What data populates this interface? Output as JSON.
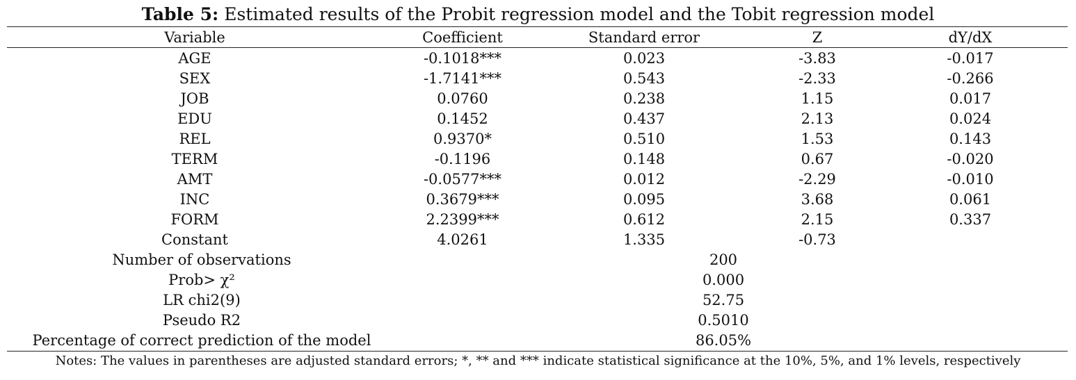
{
  "table": {
    "title_label": "Table 5:",
    "title_text": "Estimated results of the Probit regression model and the Tobit regression model",
    "headers": [
      "Variable",
      "Coefficient",
      "Standard error",
      "Z",
      "dY/dX"
    ],
    "rows": [
      {
        "variable": "AGE",
        "coefficient": "-0.1018***",
        "std_error": "0.023",
        "z": "-3.83",
        "dydx": "-0.017"
      },
      {
        "variable": "SEX",
        "coefficient": "-1.7141***",
        "std_error": "0.543",
        "z": "-2.33",
        "dydx": "-0.266"
      },
      {
        "variable": "JOB",
        "coefficient": "0.0760",
        "std_error": "0.238",
        "z": "1.15",
        "dydx": "0.017"
      },
      {
        "variable": "EDU",
        "coefficient": "0.1452",
        "std_error": "0.437",
        "z": "2.13",
        "dydx": "0.024"
      },
      {
        "variable": "REL",
        "coefficient": "0.9370*",
        "std_error": "0.510",
        "z": "1.53",
        "dydx": "0.143"
      },
      {
        "variable": "TERM",
        "coefficient": "-0.1196",
        "std_error": "0.148",
        "z": "0.67",
        "dydx": "-0.020"
      },
      {
        "variable": "AMT",
        "coefficient": "-0.0577***",
        "std_error": "0.012",
        "z": "-2.29",
        "dydx": "-0.010"
      },
      {
        "variable": "INC",
        "coefficient": "0.3679***",
        "std_error": "0.095",
        "z": "3.68",
        "dydx": "0.061"
      },
      {
        "variable": "FORM",
        "coefficient": "2.2399***",
        "std_error": "0.612",
        "z": "2.15",
        "dydx": "0.337"
      },
      {
        "variable": "Constant",
        "coefficient": "4.0261",
        "std_error": "1.335",
        "z": "-0.73",
        "dydx": ""
      }
    ],
    "stats": [
      {
        "label": "Number of observations",
        "value": "200"
      },
      {
        "label": "Prob> χ²",
        "value": "0.000"
      },
      {
        "label": "LR chi2(9)",
        "value": "52.75"
      },
      {
        "label": "Pseudo R2",
        "value": "0.5010"
      },
      {
        "label": "Percentage of correct prediction of the model",
        "value": "86.05%"
      }
    ],
    "notes": "Notes: The values in parentheses are adjusted standard errors; *, ** and *** indicate statistical significance at the 10%, 5%, and 1% levels, respectively"
  }
}
